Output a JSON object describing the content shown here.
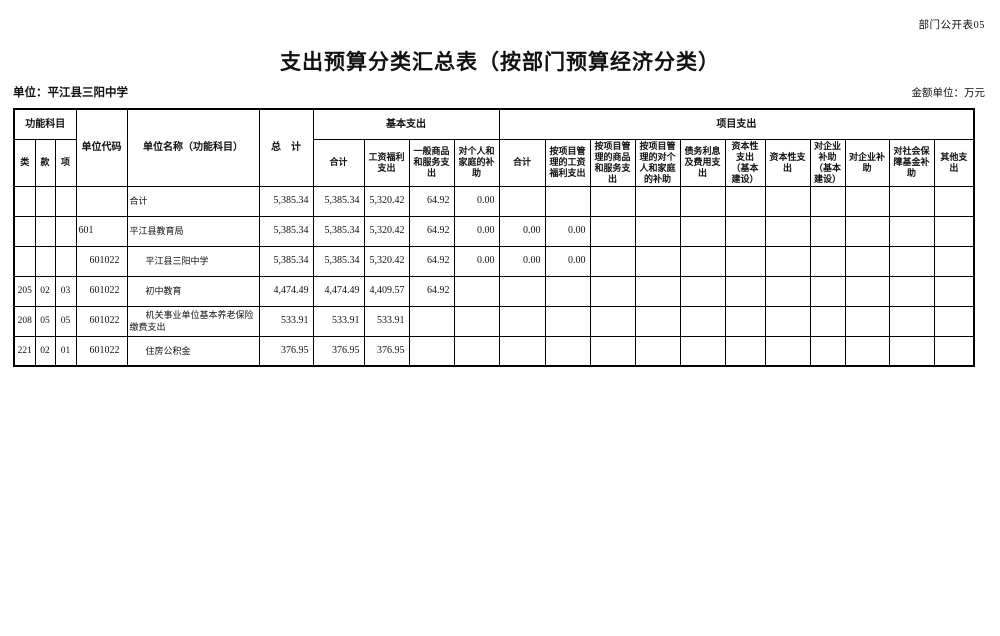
{
  "page": {
    "doc_number": "部门公开表05",
    "title": "支出预算分类汇总表（按部门预算经济分类）",
    "unit_label": "单位：平江县三阳中学",
    "amount_unit_label": "金额单位：万元"
  },
  "table": {
    "header": {
      "func_group": "功能科目",
      "cls": "类",
      "sect": "款",
      "item": "项",
      "unit_code": "单位代码",
      "unit_name": "单位名称（功能科目）",
      "total": "总　计",
      "basic_group": "基本支出",
      "basic_cols": [
        "合计",
        "工资福利支出",
        "一般商品和服务支出",
        "对个人和家庭的补助"
      ],
      "project_group": "项目支出",
      "project_cols": [
        "合计",
        "按项目管理的工资福利支出",
        "按项目管理的商品和服务支出",
        "按项目管理的对个人和家庭的补助",
        "债务利息及费用支出",
        "资本性支出（基本建设）",
        "资本性支出",
        "对企业补助（基本建设）",
        "对企业补助",
        "对社会保障基金补助",
        "其他支出"
      ]
    },
    "rows": [
      {
        "cls": "",
        "sect": "",
        "item": "",
        "code": "",
        "name": "合计",
        "indent": false,
        "values": [
          "5,385.34",
          "5,385.34",
          "5,320.42",
          "64.92",
          "0.00",
          "",
          "",
          "",
          "",
          "",
          "",
          "",
          "",
          "",
          "",
          ""
        ]
      },
      {
        "cls": "",
        "sect": "",
        "item": "",
        "code": "601",
        "name": "平江县教育局",
        "indent": false,
        "values": [
          "5,385.34",
          "5,385.34",
          "5,320.42",
          "64.92",
          "0.00",
          "0.00",
          "0.00",
          "",
          "",
          "",
          "",
          "",
          "",
          "",
          "",
          ""
        ]
      },
      {
        "cls": "",
        "sect": "",
        "item": "",
        "code": "601022",
        "name": "平江县三阳中学",
        "indent": true,
        "values": [
          "5,385.34",
          "5,385.34",
          "5,320.42",
          "64.92",
          "0.00",
          "0.00",
          "0.00",
          "",
          "",
          "",
          "",
          "",
          "",
          "",
          "",
          ""
        ]
      },
      {
        "cls": "205",
        "sect": "02",
        "item": "03",
        "code": "601022",
        "name": "初中教育",
        "indent": true,
        "values": [
          "4,474.49",
          "4,474.49",
          "4,409.57",
          "64.92",
          "",
          "",
          "",
          "",
          "",
          "",
          "",
          "",
          "",
          "",
          "",
          ""
        ]
      },
      {
        "cls": "208",
        "sect": "05",
        "item": "05",
        "code": "601022",
        "name": "机关事业单位基本养老保险缴费支出",
        "indent": true,
        "values": [
          "533.91",
          "533.91",
          "533.91",
          "",
          "",
          "",
          "",
          "",
          "",
          "",
          "",
          "",
          "",
          "",
          "",
          ""
        ]
      },
      {
        "cls": "221",
        "sect": "02",
        "item": "01",
        "code": "601022",
        "name": "住房公积金",
        "indent": true,
        "values": [
          "376.95",
          "376.95",
          "376.95",
          "",
          "",
          "",
          "",
          "",
          "",
          "",
          "",
          "",
          "",
          "",
          "",
          ""
        ]
      }
    ]
  }
}
